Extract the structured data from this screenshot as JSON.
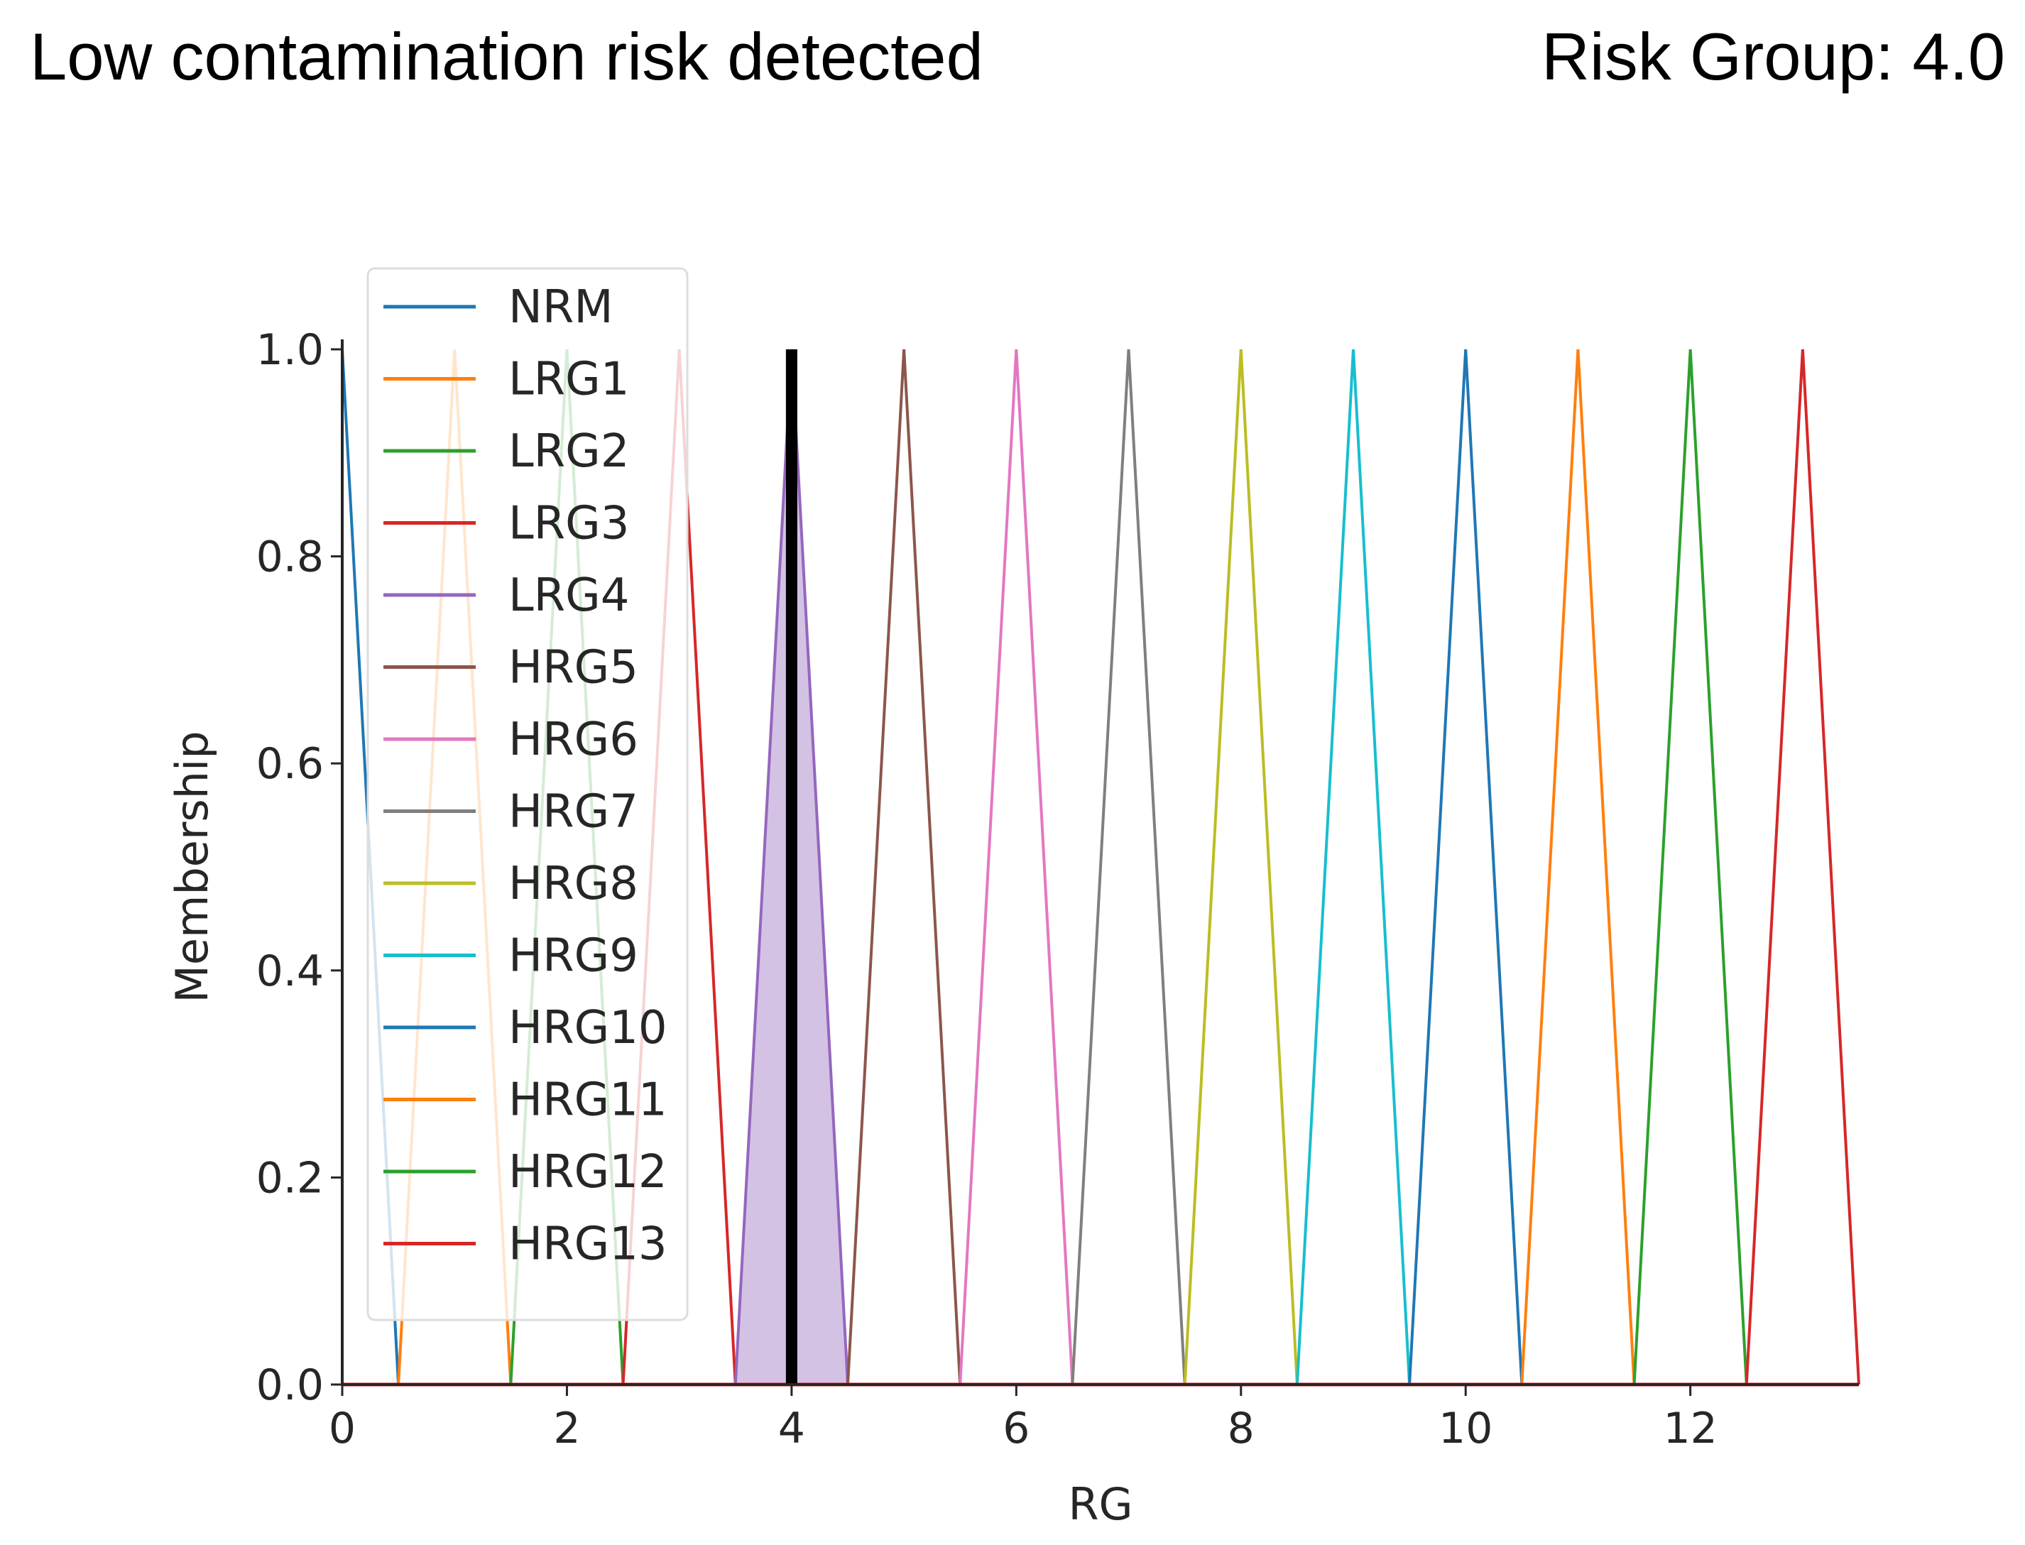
{
  "header": {
    "status_text": "Low contamination risk detected",
    "risk_group_label": "Risk Group: 4.0"
  },
  "chart_data": {
    "type": "line",
    "title": "",
    "xlabel": "RG",
    "ylabel": "Membership",
    "xlim": [
      0,
      13.5
    ],
    "ylim": [
      0,
      1.0
    ],
    "xticks": [
      0,
      2,
      4,
      6,
      8,
      10,
      12
    ],
    "yticks": [
      0.0,
      0.2,
      0.4,
      0.6,
      0.8,
      1.0
    ],
    "legend_position": "top-left",
    "grid": false,
    "defuzzified_value": 4.0,
    "activated_set": "LRG4",
    "series": [
      {
        "name": "NRM",
        "color": "#1f77b4",
        "x": [
          0,
          0,
          0.5
        ],
        "y": [
          0,
          1,
          0
        ]
      },
      {
        "name": "LRG1",
        "color": "#ff7f0e",
        "x": [
          0.5,
          1,
          1.5
        ],
        "y": [
          0,
          1,
          0
        ]
      },
      {
        "name": "LRG2",
        "color": "#2ca02c",
        "x": [
          1.5,
          2,
          2.5
        ],
        "y": [
          0,
          1,
          0
        ]
      },
      {
        "name": "LRG3",
        "color": "#d62728",
        "x": [
          2.5,
          3,
          3.5
        ],
        "y": [
          0,
          1,
          0
        ]
      },
      {
        "name": "LRG4",
        "color": "#9467bd",
        "x": [
          3.5,
          4,
          4.5
        ],
        "y": [
          0,
          1,
          0
        ]
      },
      {
        "name": "HRG5",
        "color": "#8c564b",
        "x": [
          4.5,
          5,
          5.5
        ],
        "y": [
          0,
          1,
          0
        ]
      },
      {
        "name": "HRG6",
        "color": "#e377c2",
        "x": [
          5.5,
          6,
          6.5
        ],
        "y": [
          0,
          1,
          0
        ]
      },
      {
        "name": "HRG7",
        "color": "#7f7f7f",
        "x": [
          6.5,
          7,
          7.5
        ],
        "y": [
          0,
          1,
          0
        ]
      },
      {
        "name": "HRG8",
        "color": "#bcbd22",
        "x": [
          7.5,
          8,
          8.5
        ],
        "y": [
          0,
          1,
          0
        ]
      },
      {
        "name": "HRG9",
        "color": "#17becf",
        "x": [
          8.5,
          9,
          9.5
        ],
        "y": [
          0,
          1,
          0
        ]
      },
      {
        "name": "HRG10",
        "color": "#1f77b4",
        "x": [
          9.5,
          10,
          10.5
        ],
        "y": [
          0,
          1,
          0
        ]
      },
      {
        "name": "HRG11",
        "color": "#ff7f0e",
        "x": [
          10.5,
          11,
          11.5
        ],
        "y": [
          0,
          1,
          0
        ]
      },
      {
        "name": "HRG12",
        "color": "#2ca02c",
        "x": [
          11.5,
          12,
          12.5
        ],
        "y": [
          0,
          1,
          0
        ]
      },
      {
        "name": "HRG13",
        "color": "#d62728",
        "x": [
          12.5,
          13,
          13.5
        ],
        "y": [
          0,
          1,
          0
        ]
      }
    ]
  }
}
